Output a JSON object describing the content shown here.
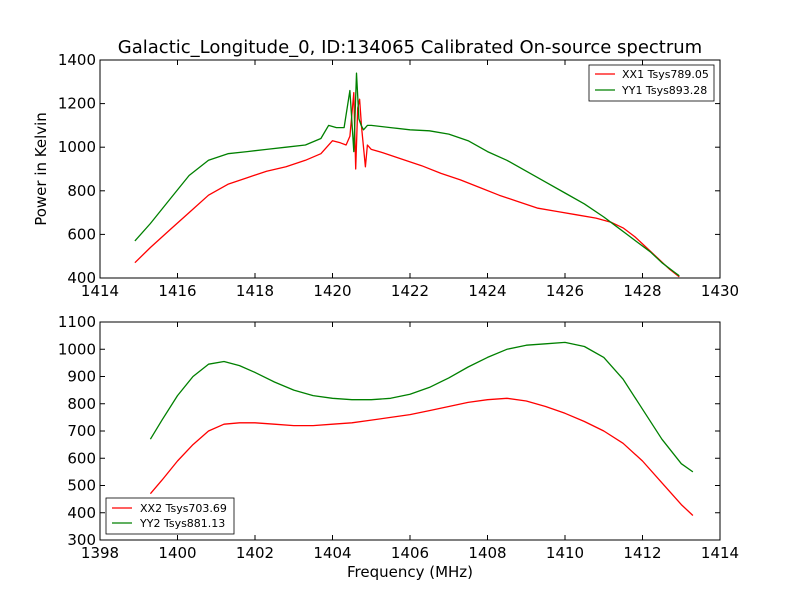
{
  "figure": {
    "title": "Galactic_Longitude_0, ID:134065 Calibrated On-source spectrum"
  },
  "colors": {
    "red": "#ff0000",
    "green": "#008000"
  },
  "chart_data": [
    {
      "type": "line",
      "title": "",
      "xlabel": "",
      "ylabel": "Power in Kelvin",
      "xlim": [
        1414,
        1430
      ],
      "ylim": [
        400,
        1400
      ],
      "xticks": [
        1414,
        1416,
        1418,
        1420,
        1422,
        1424,
        1426,
        1428,
        1430
      ],
      "yticks": [
        400,
        600,
        800,
        1000,
        1200,
        1400
      ],
      "legend_position": "top-right",
      "series": [
        {
          "name": "XX1 Tsys789.05",
          "color": "#ff0000",
          "x": [
            1414.9,
            1415.3,
            1415.8,
            1416.3,
            1416.8,
            1417.3,
            1417.8,
            1418.3,
            1418.8,
            1419.3,
            1419.7,
            1420.0,
            1420.2,
            1420.35,
            1420.45,
            1420.55,
            1420.6,
            1420.65,
            1420.7,
            1420.75,
            1420.85,
            1420.9,
            1421.0,
            1421.3,
            1421.8,
            1422.3,
            1422.8,
            1423.3,
            1423.8,
            1424.3,
            1424.8,
            1425.3,
            1425.8,
            1426.3,
            1426.8,
            1427.2,
            1427.5,
            1427.8,
            1428.1,
            1428.4,
            1428.7,
            1428.95
          ],
          "y": [
            470,
            540,
            620,
            700,
            780,
            830,
            860,
            890,
            910,
            940,
            970,
            1030,
            1020,
            1010,
            1050,
            1250,
            900,
            1180,
            1220,
            1090,
            910,
            1010,
            990,
            975,
            945,
            915,
            880,
            850,
            815,
            780,
            750,
            720,
            705,
            690,
            675,
            655,
            630,
            590,
            540,
            490,
            440,
            405
          ]
        },
        {
          "name": "YY1 Tsys893.28",
          "color": "#008000",
          "x": [
            1414.9,
            1415.3,
            1415.8,
            1416.3,
            1416.8,
            1417.3,
            1417.8,
            1418.3,
            1418.8,
            1419.3,
            1419.7,
            1419.9,
            1420.1,
            1420.3,
            1420.45,
            1420.55,
            1420.62,
            1420.68,
            1420.74,
            1420.8,
            1420.9,
            1421.0,
            1421.5,
            1422.0,
            1422.5,
            1423.0,
            1423.5,
            1424.0,
            1424.5,
            1425.0,
            1425.5,
            1426.0,
            1426.5,
            1427.0,
            1427.3,
            1427.6,
            1427.9,
            1428.2,
            1428.5,
            1428.8,
            1428.95
          ],
          "y": [
            570,
            650,
            760,
            870,
            940,
            970,
            980,
            990,
            1000,
            1010,
            1040,
            1100,
            1090,
            1090,
            1260,
            980,
            1340,
            1130,
            1100,
            1080,
            1100,
            1100,
            1090,
            1080,
            1075,
            1060,
            1030,
            980,
            940,
            890,
            840,
            790,
            740,
            680,
            640,
            600,
            560,
            520,
            470,
            430,
            410
          ]
        }
      ]
    },
    {
      "type": "line",
      "title": "",
      "xlabel": "Frequency (MHz)",
      "ylabel": "",
      "xlim": [
        1398,
        1414
      ],
      "ylim": [
        300,
        1100
      ],
      "xticks": [
        1398,
        1400,
        1402,
        1404,
        1406,
        1408,
        1410,
        1412,
        1414
      ],
      "yticks": [
        300,
        400,
        500,
        600,
        700,
        800,
        900,
        1000,
        1100
      ],
      "legend_position": "bottom-left",
      "series": [
        {
          "name": "XX2 Tsys703.69",
          "color": "#ff0000",
          "x": [
            1399.3,
            1399.6,
            1400.0,
            1400.4,
            1400.8,
            1401.2,
            1401.6,
            1402.0,
            1402.5,
            1403.0,
            1403.5,
            1404.0,
            1404.5,
            1405.0,
            1405.5,
            1406.0,
            1406.5,
            1407.0,
            1407.5,
            1408.0,
            1408.5,
            1409.0,
            1409.5,
            1410.0,
            1410.5,
            1411.0,
            1411.5,
            1412.0,
            1412.5,
            1413.0,
            1413.3
          ],
          "y": [
            470,
            520,
            590,
            650,
            700,
            725,
            730,
            730,
            725,
            720,
            720,
            725,
            730,
            740,
            750,
            760,
            775,
            790,
            805,
            815,
            820,
            810,
            790,
            765,
            735,
            700,
            655,
            590,
            510,
            430,
            390
          ]
        },
        {
          "name": "YY2 Tsys881.13",
          "color": "#008000",
          "x": [
            1399.3,
            1399.6,
            1400.0,
            1400.4,
            1400.8,
            1401.2,
            1401.6,
            1402.0,
            1402.5,
            1403.0,
            1403.5,
            1404.0,
            1404.5,
            1405.0,
            1405.5,
            1406.0,
            1406.5,
            1407.0,
            1407.5,
            1408.0,
            1408.5,
            1409.0,
            1409.5,
            1410.0,
            1410.5,
            1411.0,
            1411.5,
            1412.0,
            1412.5,
            1413.0,
            1413.3
          ],
          "y": [
            670,
            740,
            830,
            900,
            945,
            955,
            940,
            915,
            880,
            850,
            830,
            820,
            815,
            815,
            820,
            835,
            860,
            895,
            935,
            970,
            1000,
            1015,
            1020,
            1025,
            1010,
            970,
            890,
            780,
            670,
            580,
            550
          ]
        }
      ]
    }
  ]
}
